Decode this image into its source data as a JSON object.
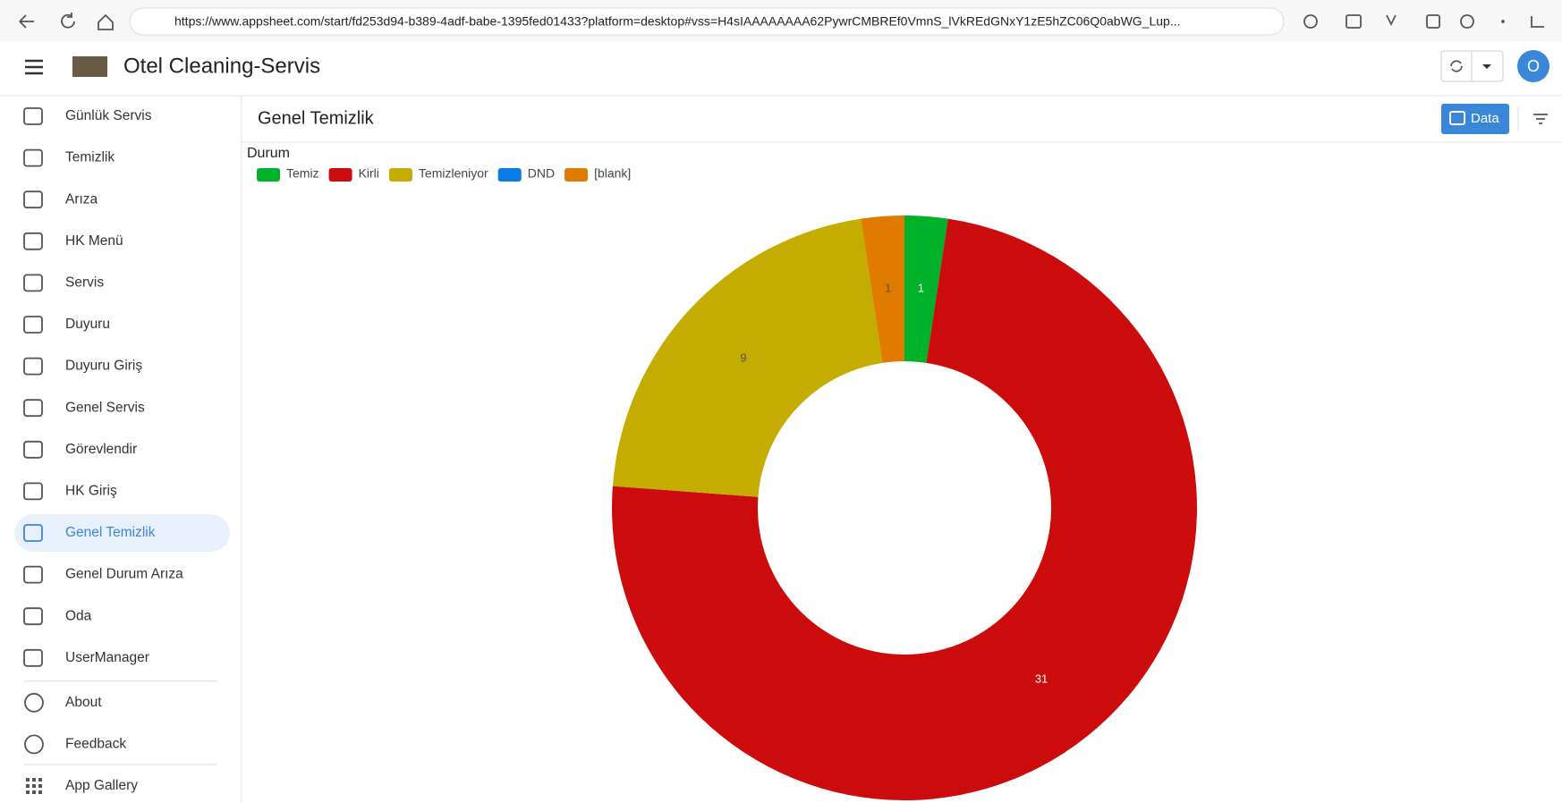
{
  "browser": {
    "url": "https://www.appsheet.com/start/fd253d94-b389-4adf-babe-1395fed01433?platform=desktop#vss=H4sIAAAAAAAA62PywrCMBREf0VmnS_lVkREdGNxY1zE5hZC06Q0abWG_Lup..."
  },
  "app": {
    "title": "Otel Cleaning-Servis",
    "avatar": "O"
  },
  "nav": {
    "items": [
      "Günlük Servis",
      "Temizlik",
      "Arıza",
      "HK Menü",
      "Servis",
      "Duyuru",
      "Duyuru Giriş",
      "Genel Servis",
      "Görevlendir",
      "HK Giriş",
      "Genel Temizlik",
      "Genel Durum Arıza",
      "Oda",
      "UserManager"
    ],
    "footer": [
      "About",
      "Feedback"
    ],
    "gallery": "App Gallery"
  },
  "view": {
    "title": "Genel Temizlik",
    "data_button": "Data"
  },
  "chart_data": {
    "type": "donut",
    "legend_title": "Durum",
    "categories": [
      "Temiz",
      "Kirli",
      "Temizleniyor",
      "DND",
      "[blank]"
    ],
    "colors": [
      "#00b22a",
      "#cc0c0c",
      "#c4ad00",
      "#0a7ae6",
      "#e07b00"
    ],
    "values": [
      1,
      31,
      9,
      0,
      1
    ]
  }
}
